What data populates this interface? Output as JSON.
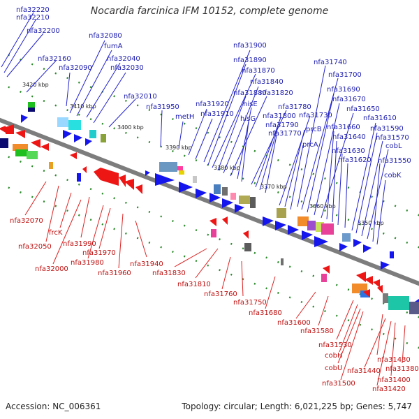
{
  "title": "Nocardia farcinica IFM 10152, complete genome",
  "accession": "Accession: NC_006361",
  "topology": "Topology: circular; Length: 6,021,225 bp; Genes: 5,747",
  "colors": {
    "forward": "#0000ff",
    "reverse": "#ff0000",
    "backbone": "#808080",
    "tick": "#2a8a2a"
  },
  "kbp_labels": [
    "3420 kbp",
    "3410 kbp",
    "3400 kbp",
    "3390 kbp",
    "3380 kbp",
    "3370 kbp",
    "3360 kbp",
    "3350 kbp"
  ],
  "labels_top": [
    "nfa32220",
    "nfa32210",
    "nfa32200",
    "nfa32160",
    "nfa32090",
    "nfa32080",
    "fumA",
    "nfa32040",
    "nfa32030",
    "nfa32010",
    "nfa31950",
    "metH",
    "nfa31920",
    "nfa31910",
    "nfa31900",
    "nfa31890",
    "nfa31870",
    "nfa31880",
    "nfa31840",
    "nfa31820",
    "hisE",
    "hisG",
    "nfa31780",
    "nfa31800",
    "nfa31790",
    "nfa31770",
    "nfa31730",
    "prcB",
    "prcA",
    "nfa31740",
    "nfa31700",
    "nfa31690",
    "nfa31670",
    "nfa31650",
    "nfa31660",
    "nfa31640",
    "nfa31630",
    "nfa31620",
    "nfa31610",
    "nfa31590",
    "nfa31570",
    "cobL",
    "nfa31550",
    "cobK"
  ],
  "labels_bottom": [
    "nfa32070",
    "nfa32050",
    "frcK",
    "nfa31990",
    "nfa32000",
    "nfa31980",
    "nfa31970",
    "nfa31960",
    "nfa31940",
    "nfa31830",
    "nfa31810",
    "nfa31760",
    "nfa31750",
    "nfa31680",
    "nfa31600",
    "nfa31580",
    "nfa31530",
    "cobH",
    "cobU",
    "nfa31500",
    "nfa31440",
    "nfa31430",
    "nfa31420",
    "nfa31400",
    "nfa31380"
  ]
}
